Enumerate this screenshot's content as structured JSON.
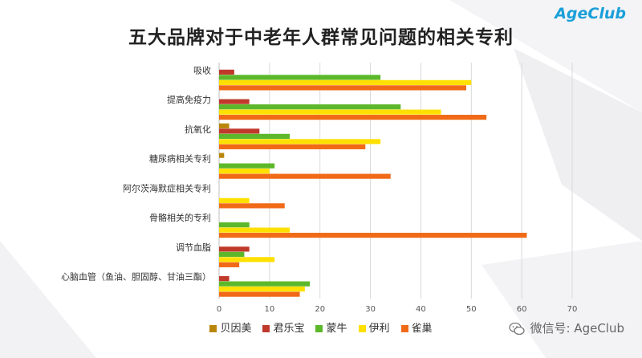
{
  "header": {
    "title": "五大品牌对于中老年人群常见问题的相关专利",
    "logo_text": "AgeClub"
  },
  "watermark": {
    "text": "微信号: AgeClub",
    "icon": "wechat-icon"
  },
  "colors": {
    "贝因美": "#b8860b",
    "君乐宝": "#c0392b",
    "蒙牛": "#5cb82a",
    "伊利": "#ffe000",
    "雀巢": "#f06a18"
  },
  "chart_data": {
    "type": "bar",
    "orientation": "horizontal",
    "title": "五大品牌对于中老年人群常见问题的相关专利",
    "categories": [
      "吸收",
      "提高免疫力",
      "抗氧化",
      "糖尿病相关专利",
      "阿尔茨海默症相关专利",
      "骨骼相关的专利",
      "调节血脂",
      "心脑血管（鱼油、胆固醇、甘油三酯）"
    ],
    "series": [
      {
        "name": "贝因美",
        "values": [
          0,
          0,
          2,
          1,
          0,
          0,
          0,
          0
        ]
      },
      {
        "name": "君乐宝",
        "values": [
          3,
          6,
          8,
          0,
          0,
          0,
          6,
          2
        ]
      },
      {
        "name": "蒙牛",
        "values": [
          32,
          36,
          14,
          11,
          0,
          6,
          5,
          18
        ]
      },
      {
        "name": "伊利",
        "values": [
          50,
          44,
          32,
          10,
          6,
          14,
          11,
          17
        ]
      },
      {
        "name": "雀巢",
        "values": [
          49,
          53,
          29,
          34,
          13,
          61,
          4,
          16
        ]
      }
    ],
    "xlim": [
      0,
      70
    ],
    "xticks": [
      0,
      10,
      20,
      30,
      40,
      50,
      60,
      70
    ],
    "grid": true,
    "legend": "bottom"
  }
}
